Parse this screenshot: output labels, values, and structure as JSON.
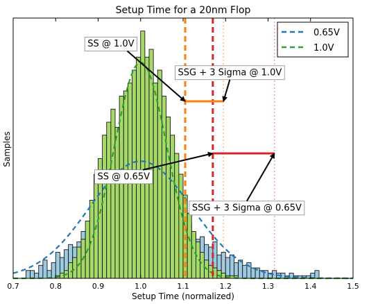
{
  "chart_data": {
    "type": "bar",
    "title": "Setup Time for a 20nm Flop",
    "xlabel": "Setup Time (normalized)",
    "ylabel": "Samples",
    "xlim": [
      0.7,
      1.5
    ],
    "x_ticks": [
      0.7,
      0.8,
      0.9,
      1.0,
      1.1,
      1.2,
      1.3,
      1.4,
      1.5
    ],
    "x_tick_labels": [
      "0.7",
      "0.8",
      "0.9",
      "1.0",
      "1.1",
      "1.2",
      "1.3",
      "1.4",
      "1.5"
    ],
    "ylim": [
      0,
      100
    ],
    "y_ticks_shown": false,
    "grid": false,
    "legend_position": "top-right",
    "series": [
      {
        "name": "0.65V",
        "kind": "histogram",
        "color": "#9ecae1",
        "edge_color": "#000000",
        "curve_color": "#1f77b4",
        "bin_width": 0.01,
        "bin_starts": [
          0.73,
          0.74,
          0.75,
          0.76,
          0.77,
          0.78,
          0.79,
          0.8,
          0.81,
          0.82,
          0.83,
          0.84,
          0.85,
          0.86,
          0.87,
          0.88,
          0.89,
          0.9,
          0.91,
          0.92,
          0.93,
          0.94,
          0.95,
          0.96,
          0.97,
          0.98,
          0.99,
          1.0,
          1.01,
          1.02,
          1.03,
          1.04,
          1.05,
          1.06,
          1.07,
          1.08,
          1.09,
          1.1,
          1.11,
          1.12,
          1.13,
          1.14,
          1.15,
          1.16,
          1.17,
          1.18,
          1.19,
          1.2,
          1.21,
          1.22,
          1.23,
          1.24,
          1.25,
          1.26,
          1.27,
          1.28,
          1.29,
          1.3,
          1.31,
          1.32,
          1.33,
          1.34,
          1.35,
          1.36,
          1.37,
          1.38,
          1.39,
          1.4,
          1.41
        ],
        "values": [
          3,
          3,
          2,
          5,
          7,
          3,
          6,
          10,
          8,
          11,
          13,
          12,
          14,
          18,
          15,
          20,
          22,
          25,
          24,
          28,
          26,
          30,
          27,
          31,
          29,
          32,
          30,
          30,
          27,
          29,
          26,
          28,
          25,
          24,
          22,
          21,
          23,
          19,
          21,
          17,
          15,
          16,
          13,
          12,
          14,
          9,
          10,
          8,
          9,
          6,
          7,
          5,
          6,
          4,
          4,
          3,
          3,
          2,
          3,
          2,
          2,
          1,
          2,
          1,
          1,
          1,
          1,
          2,
          3
        ]
      },
      {
        "name": "1.0V",
        "kind": "histogram",
        "color": "#a6d96a",
        "edge_color": "#000000",
        "curve_color": "#2ca02c",
        "bin_width": 0.01,
        "bin_starts": [
          0.8,
          0.81,
          0.82,
          0.83,
          0.84,
          0.85,
          0.86,
          0.87,
          0.88,
          0.89,
          0.9,
          0.91,
          0.92,
          0.93,
          0.94,
          0.95,
          0.96,
          0.97,
          0.98,
          0.99,
          1.0,
          1.01,
          1.02,
          1.03,
          1.04,
          1.05,
          1.06,
          1.07,
          1.08,
          1.09,
          1.1,
          1.11,
          1.12,
          1.13,
          1.14,
          1.15,
          1.16,
          1.17,
          1.18,
          1.19,
          1.2,
          1.21,
          1.22
        ],
        "values": [
          1,
          2,
          3,
          6,
          8,
          12,
          15,
          22,
          30,
          40,
          46,
          55,
          60,
          65,
          58,
          70,
          72,
          75,
          80,
          85,
          95,
          85,
          88,
          75,
          80,
          70,
          62,
          55,
          48,
          40,
          32,
          25,
          18,
          14,
          10,
          7,
          5,
          4,
          3,
          2,
          1,
          1,
          1
        ]
      }
    ],
    "fit_curves": [
      {
        "series": "0.65V",
        "mean": 1.0,
        "sigma": 0.12,
        "peak": 45,
        "color": "#1f77b4"
      },
      {
        "series": "1.0V",
        "mean": 1.0,
        "sigma": 0.062,
        "peak": 83,
        "color": "#2ca02c"
      }
    ],
    "vertical_lines": [
      {
        "x": 1.105,
        "color": "#ff7f0e",
        "style": "dashed"
      },
      {
        "x": 1.195,
        "color": "#ffbb88",
        "style": "dotted"
      },
      {
        "x": 1.17,
        "color": "#d62728",
        "style": "dashed"
      },
      {
        "x": 1.315,
        "color": "#f0a0a0",
        "style": "dotted"
      }
    ],
    "bars_horizontal": [
      {
        "x_start": 1.105,
        "x_end": 1.195,
        "y": 68,
        "color": "#ff7f0e"
      },
      {
        "x_start": 1.17,
        "x_end": 1.315,
        "y": 48,
        "color": "#d62728"
      }
    ],
    "annotations": [
      {
        "text": "SS @ 1.0V",
        "box_x": 0.93,
        "box_y": 90,
        "arrow_to": [
          1.105,
          68
        ]
      },
      {
        "text": "SSG + 3 Sigma @ 1.0V",
        "box_x": 1.21,
        "box_y": 79,
        "arrow_to": [
          1.195,
          68
        ]
      },
      {
        "text": "SS @ 0.65V",
        "box_x": 0.96,
        "box_y": 39,
        "arrow_to": [
          1.17,
          48
        ]
      },
      {
        "text": "SSG + 3 Sigma @ 0.65V",
        "box_x": 1.25,
        "box_y": 27,
        "arrow_to": [
          1.315,
          48
        ]
      }
    ]
  }
}
